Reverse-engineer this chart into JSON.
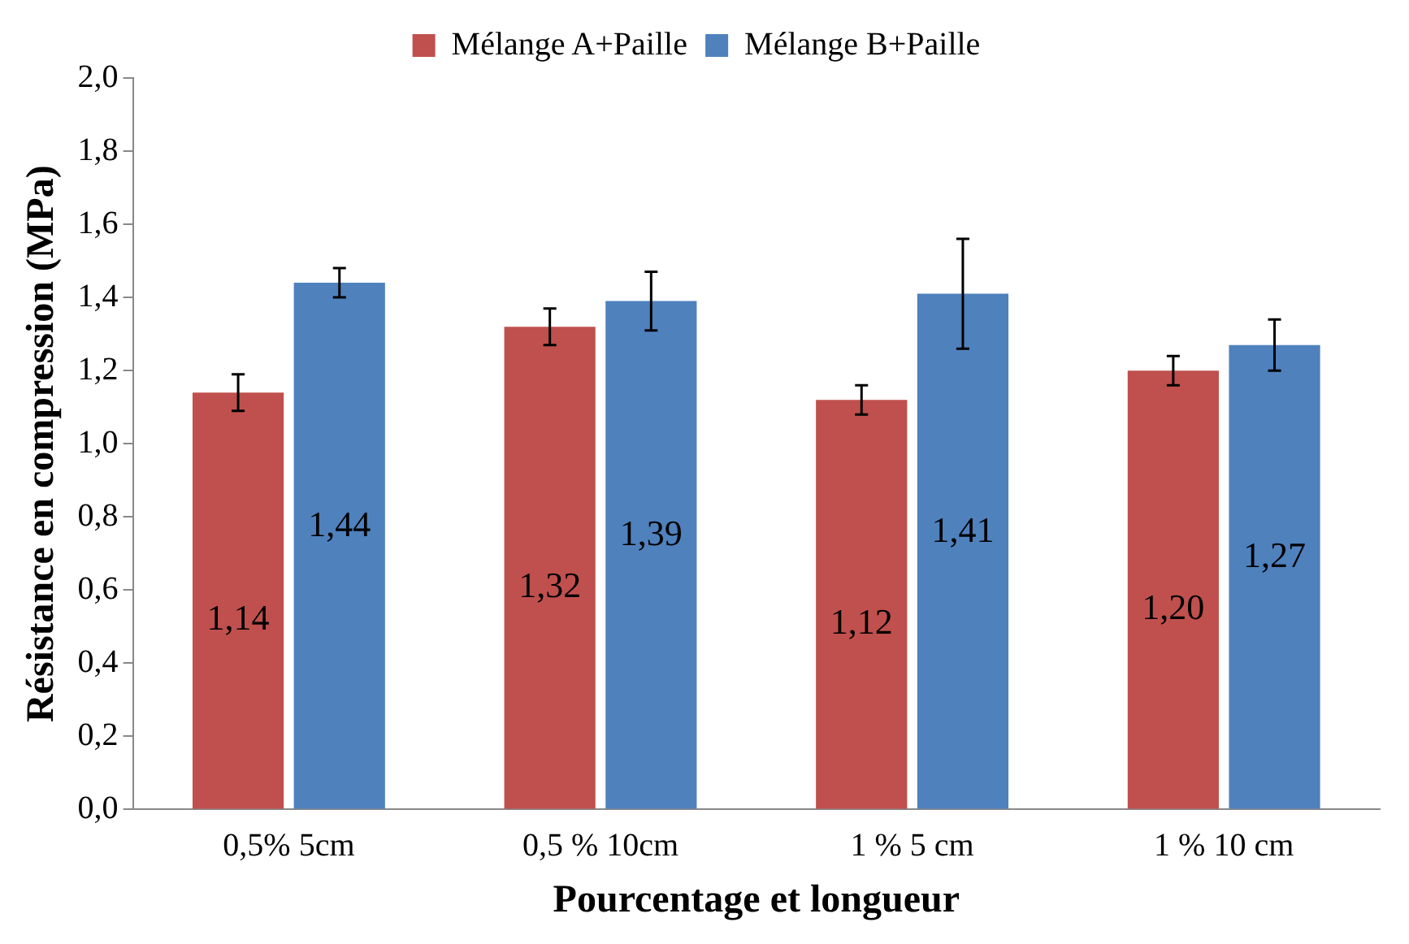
{
  "chart_data": {
    "type": "bar",
    "xlabel": "Pourcentage et longueur",
    "ylabel": "Résistance en compression (MPa)",
    "categories": [
      "0,5% 5cm",
      "0,5 % 10cm",
      "1 % 5 cm",
      "1 % 10 cm"
    ],
    "series": [
      {
        "name": "Mélange A+Paille",
        "color": "#c0504d",
        "values": [
          1.14,
          1.32,
          1.12,
          1.2
        ],
        "errors": [
          0.05,
          0.05,
          0.04,
          0.04
        ],
        "value_labels": [
          "1,14",
          "1,32",
          "1,12",
          "1,20"
        ]
      },
      {
        "name": "Mélange B+Paille",
        "color": "#4f81bd",
        "values": [
          1.44,
          1.39,
          1.41,
          1.27
        ],
        "errors": [
          0.04,
          0.08,
          0.15,
          0.07
        ],
        "value_labels": [
          "1,44",
          "1,39",
          "1,41",
          "1,27"
        ]
      }
    ],
    "ylim": [
      0,
      2
    ],
    "yticks": [
      {
        "value": 0,
        "label": "0,0"
      },
      {
        "value": 0.2,
        "label": "0,2"
      },
      {
        "value": 0.4,
        "label": "0,4"
      },
      {
        "value": 0.6,
        "label": "0,6"
      },
      {
        "value": 0.8,
        "label": "0,8"
      },
      {
        "value": 1,
        "label": "1,0"
      },
      {
        "value": 1.2,
        "label": "1,2"
      },
      {
        "value": 1.4,
        "label": "1,4"
      },
      {
        "value": 1.6,
        "label": "1,6"
      },
      {
        "value": 1.8,
        "label": "1,8"
      },
      {
        "value": 2,
        "label": "2,0"
      }
    ],
    "grid": false,
    "legend": "top"
  }
}
